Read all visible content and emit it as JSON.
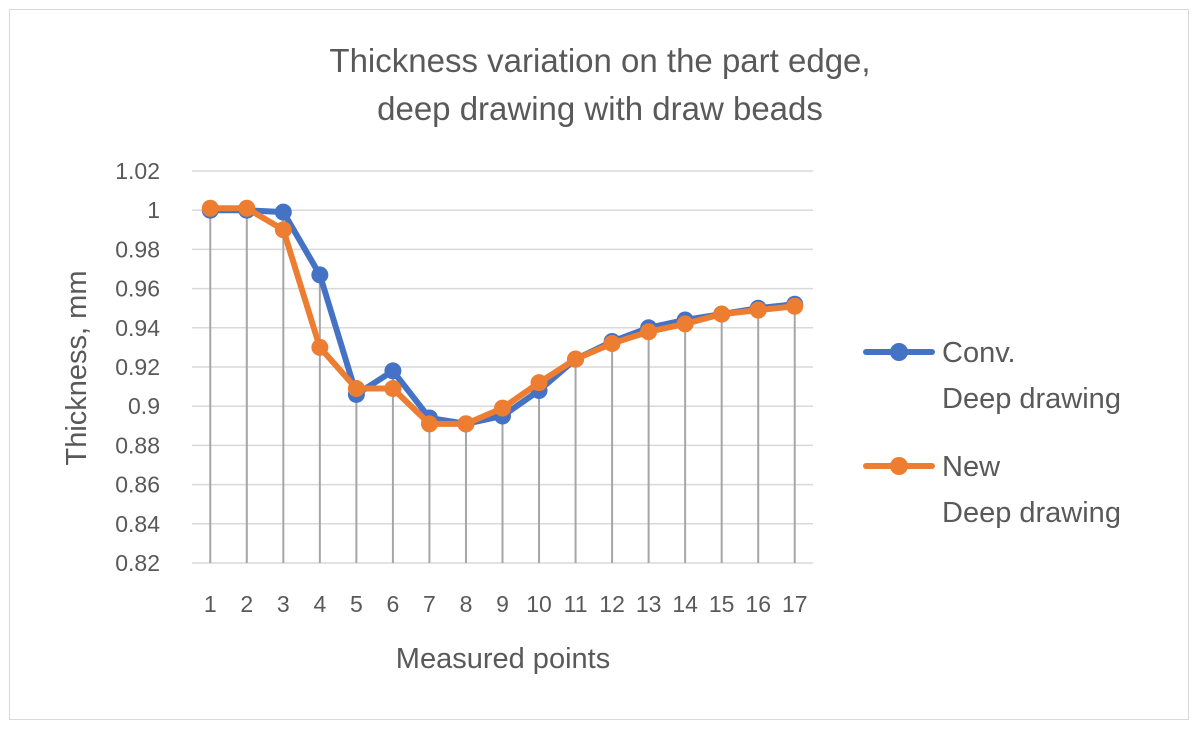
{
  "chart_data": {
    "type": "line",
    "title": [
      "Thickness variation on the part edge,",
      "deep drawing with draw beads"
    ],
    "xlabel": "Measured points",
    "ylabel": "Thickness, mm",
    "categories": [
      "1",
      "2",
      "3",
      "4",
      "5",
      "6",
      "7",
      "8",
      "9",
      "10",
      "11",
      "12",
      "13",
      "14",
      "15",
      "16",
      "17"
    ],
    "ylim": [
      0.82,
      1.02
    ],
    "yticks": [
      "0.82",
      "0.84",
      "0.86",
      "0.88",
      "0.9",
      "0.92",
      "0.94",
      "0.96",
      "0.98",
      "1",
      "1.02"
    ],
    "grid": true,
    "drop_lines": true,
    "legend_position": "right",
    "series": [
      {
        "name": [
          "Conv.",
          "Deep drawing"
        ],
        "color": "#4472c4",
        "values": [
          1.0,
          1.0,
          0.999,
          0.967,
          0.906,
          0.918,
          0.894,
          0.891,
          0.895,
          0.908,
          0.924,
          0.933,
          0.94,
          0.944,
          0.947,
          0.95,
          0.952
        ]
      },
      {
        "name": [
          "New",
          "Deep drawing"
        ],
        "color": "#ed7d31",
        "values": [
          1.001,
          1.001,
          0.99,
          0.93,
          0.909,
          0.909,
          0.891,
          0.891,
          0.899,
          0.912,
          0.924,
          0.932,
          0.938,
          0.942,
          0.947,
          0.949,
          0.951
        ]
      }
    ]
  }
}
